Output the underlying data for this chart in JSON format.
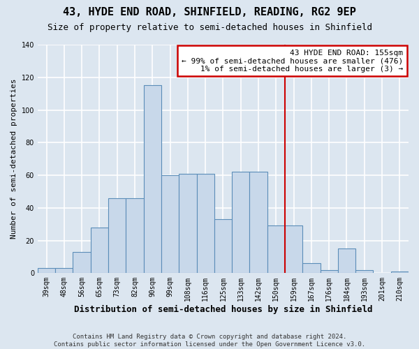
{
  "title": "43, HYDE END ROAD, SHINFIELD, READING, RG2 9EP",
  "subtitle": "Size of property relative to semi-detached houses in Shinfield",
  "xlabel": "Distribution of semi-detached houses by size in Shinfield",
  "ylabel": "Number of semi-detached properties",
  "bar_color": "#c8d8ea",
  "bar_edge_color": "#5b8db8",
  "vline_color": "#cc0000",
  "vline_x": 13.5,
  "annotation_title": "43 HYDE END ROAD: 155sqm",
  "annotation_line1": "← 99% of semi-detached houses are smaller (476)",
  "annotation_line2": "1% of semi-detached houses are larger (3) →",
  "annotation_box_facecolor": "#ffffff",
  "annotation_box_edgecolor": "#cc0000",
  "footer_line1": "Contains HM Land Registry data © Crown copyright and database right 2024.",
  "footer_line2": "Contains public sector information licensed under the Open Government Licence v3.0.",
  "tick_labels": [
    "39sqm",
    "48sqm",
    "56sqm",
    "65sqm",
    "73sqm",
    "82sqm",
    "90sqm",
    "99sqm",
    "108sqm",
    "116sqm",
    "125sqm",
    "133sqm",
    "142sqm",
    "150sqm",
    "159sqm",
    "167sqm",
    "176sqm",
    "184sqm",
    "193sqm",
    "201sqm",
    "210sqm"
  ],
  "values": [
    3,
    3,
    13,
    28,
    46,
    46,
    115,
    60,
    61,
    61,
    33,
    62,
    62,
    29,
    29,
    6,
    2,
    15,
    2,
    0,
    1
  ],
  "ylim": [
    0,
    140
  ],
  "yticks": [
    0,
    20,
    40,
    60,
    80,
    100,
    120,
    140
  ],
  "bg_color": "#dce6f0",
  "grid_color": "#ffffff",
  "title_fontsize": 11,
  "subtitle_fontsize": 9,
  "ylabel_fontsize": 8,
  "xlabel_fontsize": 9,
  "tick_fontsize": 7,
  "footer_fontsize": 6.5,
  "annot_fontsize": 8
}
